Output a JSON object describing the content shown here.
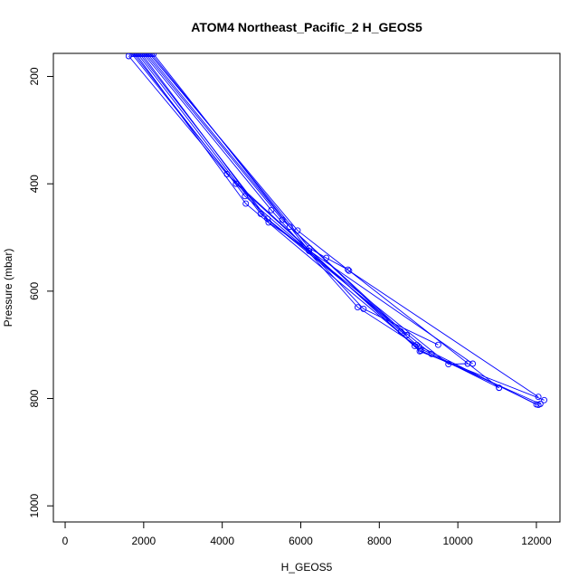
{
  "chart_data": {
    "type": "line",
    "title": "ATOM4 Northeast_Pacific_2 H_GEOS5",
    "xlabel": "H_GEOS5",
    "ylabel": "Pressure (mbar)",
    "xlim": [
      -300,
      12600
    ],
    "ylim": [
      1030,
      157
    ],
    "y_reversed": true,
    "x_ticks": [
      0,
      2000,
      4000,
      6000,
      8000,
      10000,
      12000
    ],
    "x_tick_labels": [
      "0",
      "2000",
      "4000",
      "6000",
      "8000",
      "10000",
      "12000"
    ],
    "y_ticks": [
      200,
      400,
      600,
      800,
      1000
    ],
    "y_tick_labels": [
      "200",
      "400",
      "600",
      "800",
      "1000"
    ],
    "grid": false,
    "series_color": "#0000ff",
    "marker": "open-circle",
    "series": [
      {
        "x": [
          1620,
          4120,
          9030,
          12200
        ],
        "y": [
          162,
          382,
          712,
          803
        ]
      },
      {
        "x": [
          1700,
          4350,
          8900,
          12050
        ],
        "y": [
          158,
          400,
          702,
          812
        ]
      },
      {
        "x": [
          1750,
          4580,
          8950,
          12000
        ],
        "y": [
          158,
          423,
          700,
          811
        ]
      },
      {
        "x": [
          1800,
          4600,
          9060,
          12100
        ],
        "y": [
          158,
          437,
          711,
          810
        ]
      },
      {
        "x": [
          1850,
          4980,
          9330,
          11050
        ],
        "y": [
          158,
          456,
          717,
          780
        ]
      },
      {
        "x": [
          1900,
          5150,
          9760,
          10250
        ],
        "y": [
          158,
          465,
          736,
          735
        ]
      },
      {
        "x": [
          1950,
          5180,
          10380
        ],
        "y": [
          158,
          472,
          735
        ]
      },
      {
        "x": [
          2000,
          5250,
          7450,
          9000
        ],
        "y": [
          158,
          449,
          630,
          703
        ]
      },
      {
        "x": [
          2050,
          5530,
          8700
        ],
        "y": [
          158,
          467,
          682
        ]
      },
      {
        "x": [
          2100,
          5720,
          8550
        ],
        "y": [
          158,
          480,
          675
        ]
      },
      {
        "x": [
          2150,
          5920,
          7230,
          12050
        ],
        "y": [
          158,
          487,
          562,
          797
        ]
      },
      {
        "x": [
          2200,
          6220,
          6650,
          7200,
          11050
        ],
        "y": [
          158,
          520,
          538,
          560,
          780
        ]
      },
      {
        "x": [
          2250,
          6210,
          7600,
          9500
        ],
        "y": [
          158,
          525,
          633,
          700
        ]
      }
    ]
  }
}
